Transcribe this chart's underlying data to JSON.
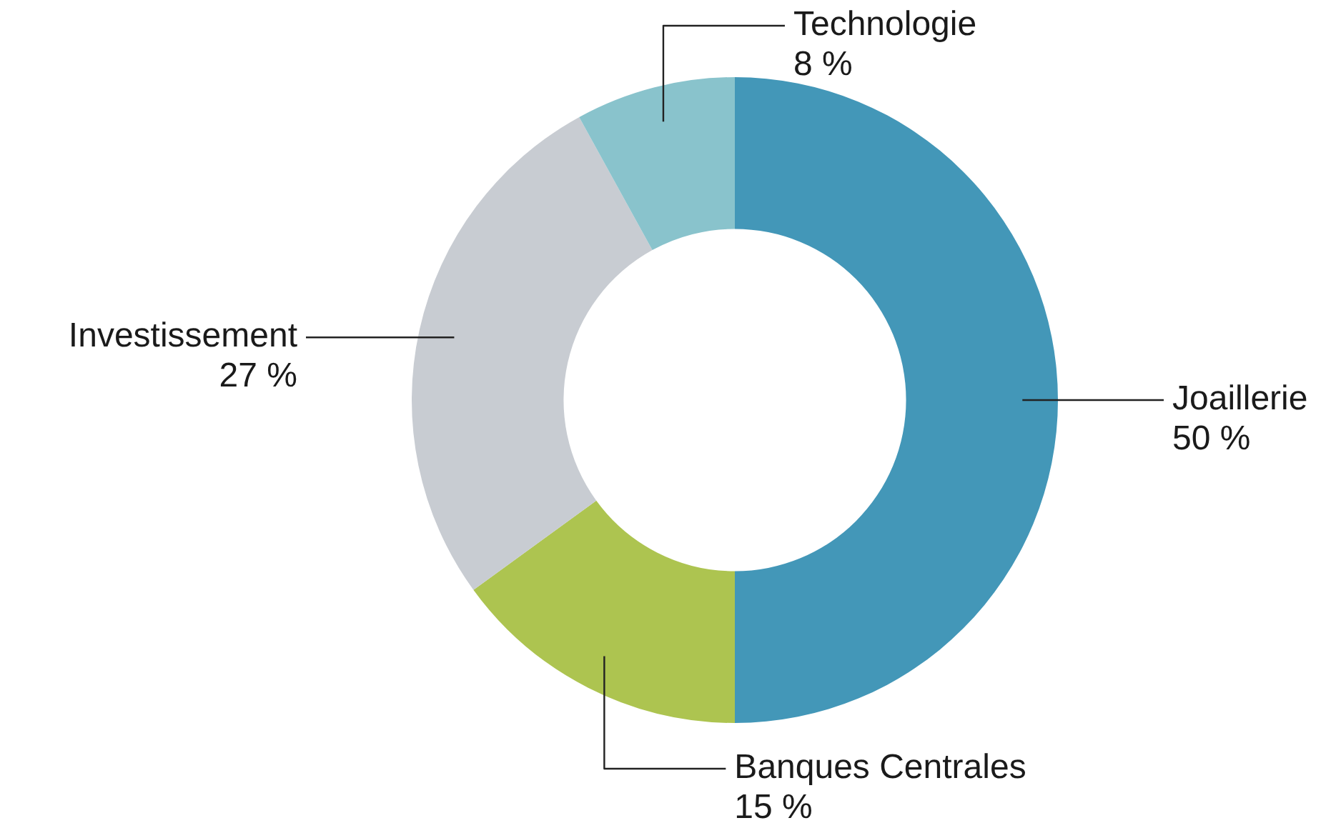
{
  "chart_data": {
    "type": "donut",
    "categories": [
      "Joaillerie",
      "Banques Centrales",
      "Investissement",
      "Technologie"
    ],
    "values": [
      50,
      15,
      27,
      8
    ],
    "colors": [
      "#4397b8",
      "#adc450",
      "#c8ccd2",
      "#89c3cc"
    ],
    "value_labels": [
      "50 %",
      "15 %",
      "27 %",
      "8 %"
    ],
    "legend": false
  }
}
